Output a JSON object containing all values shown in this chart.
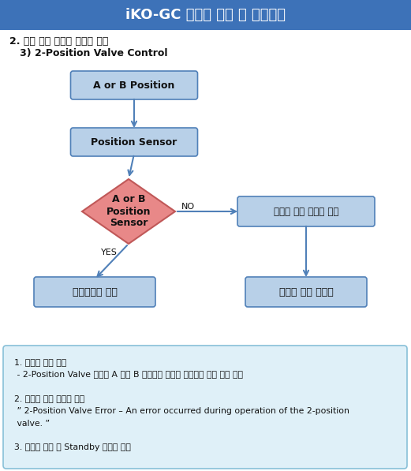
{
  "title": "iKO-GC 이벤트 알림 및 보호모드",
  "title_bg": "#3d72b8",
  "title_color": "#ffffff",
  "subtitle1": "2. 특수 제어 항목의 서비스 알림",
  "subtitle2": "   3) 2-Position Valve Control",
  "box_bg": "#b8d0e8",
  "box_border": "#5080b8",
  "diamond_bg": "#e88888",
  "diamond_border": "#c05858",
  "note_bg": "#dff0f8",
  "note_border": "#88c0d8",
  "arrow_color": "#5080b8",
  "text_color": "#111111",
  "box1_label": "A or B Position",
  "box2_label": "Position Sensor",
  "diamond_label": "A or B\nPosition\nSensor",
  "yes_label": "YES",
  "no_label": "NO",
  "left_result_label": "스케줄대로 동작",
  "right_box_label": "서비스 알림 메시지 표시",
  "right_result_label": "스케줄 중단 초기화",
  "note_lines": [
    "1. 서비스 알림 조건",
    " - 2-Position Valve 제어시 A 또는 B 포지션의 센서가 반응하지 않을 경우 알림",
    "",
    "2. 서비스 알림 메시지 표시",
    " ” 2-Position Valve Error – An error occurred during operation of the 2-position",
    " valve. ”",
    "",
    "3. 스케줄 중단 후 Standby 스케줄 실행"
  ],
  "fig_w": 5.21,
  "fig_h": 5.97,
  "dpi": 100
}
